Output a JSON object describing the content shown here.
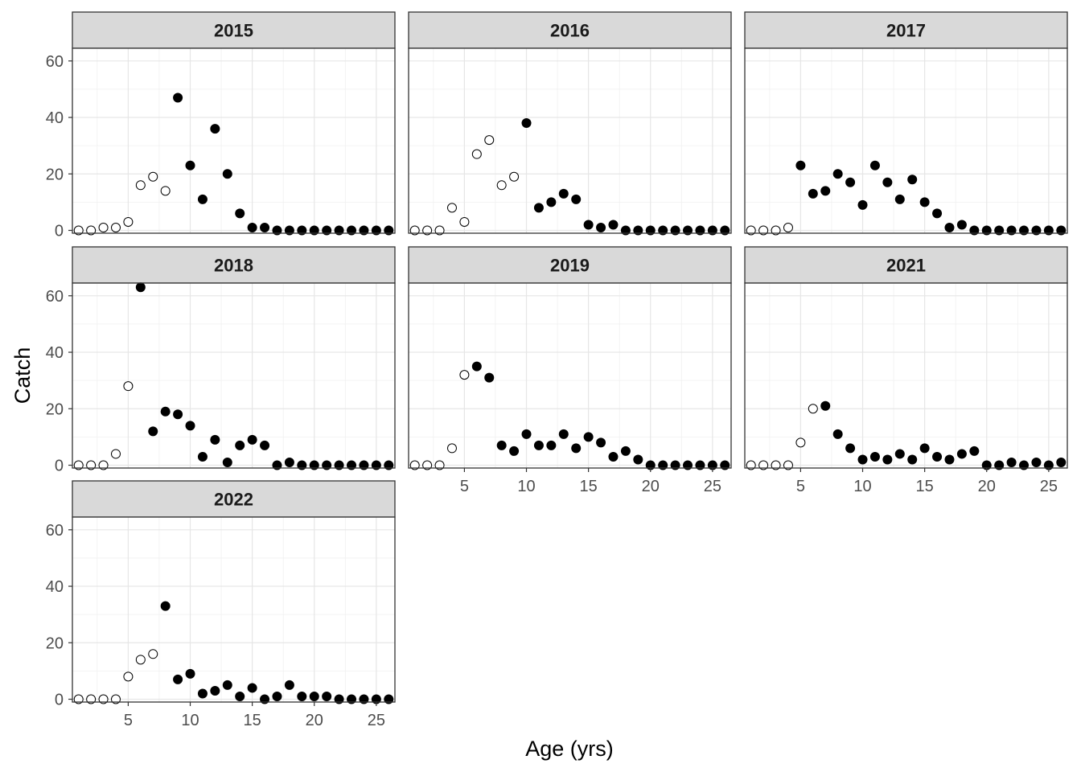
{
  "chart_data": {
    "type": "scatter",
    "xlabel": "Age (yrs)",
    "ylabel": "Catch",
    "xlim": [
      0.5,
      26.5
    ],
    "ylim": [
      -1,
      64.5
    ],
    "x_ticks": [
      5,
      10,
      15,
      20,
      25
    ],
    "y_ticks": [
      0,
      20,
      40,
      60
    ],
    "grid": true,
    "ages": [
      1,
      2,
      3,
      4,
      5,
      6,
      7,
      8,
      9,
      10,
      11,
      12,
      13,
      14,
      15,
      16,
      17,
      18,
      19,
      20,
      21,
      22,
      23,
      24,
      25,
      26
    ],
    "marker_fill": {
      "open": "#ffffff",
      "filled": "#000000"
    },
    "panels": [
      {
        "year": "2015",
        "catch": [
          0,
          0,
          1,
          1,
          3,
          16,
          19,
          14,
          47,
          23,
          11,
          36,
          20,
          6,
          1,
          1,
          0,
          0,
          0,
          0,
          0,
          0,
          0,
          0,
          0,
          0
        ],
        "filled": [
          0,
          0,
          0,
          0,
          0,
          0,
          0,
          0,
          1,
          1,
          1,
          1,
          1,
          1,
          1,
          1,
          1,
          1,
          1,
          1,
          1,
          1,
          1,
          1,
          1,
          1
        ]
      },
      {
        "year": "2016",
        "catch": [
          0,
          0,
          0,
          8,
          3,
          27,
          32,
          16,
          19,
          38,
          8,
          10,
          13,
          11,
          2,
          1,
          2,
          0,
          0,
          0,
          0,
          0,
          0,
          0,
          0,
          0
        ],
        "filled": [
          0,
          0,
          0,
          0,
          0,
          0,
          0,
          0,
          0,
          1,
          1,
          1,
          1,
          1,
          1,
          1,
          1,
          1,
          1,
          1,
          1,
          1,
          1,
          1,
          1,
          1
        ]
      },
      {
        "year": "2017",
        "catch": [
          0,
          0,
          0,
          1,
          23,
          13,
          14,
          20,
          17,
          9,
          23,
          17,
          11,
          18,
          10,
          6,
          1,
          2,
          0,
          0,
          0,
          0,
          0,
          0,
          0,
          0
        ],
        "filled": [
          0,
          0,
          0,
          0,
          1,
          1,
          1,
          1,
          1,
          1,
          1,
          1,
          1,
          1,
          1,
          1,
          1,
          1,
          1,
          1,
          1,
          1,
          1,
          1,
          1,
          1
        ]
      },
      {
        "year": "2018",
        "catch": [
          0,
          0,
          0,
          4,
          28,
          63,
          12,
          19,
          18,
          14,
          3,
          9,
          1,
          7,
          9,
          7,
          0,
          1,
          0,
          0,
          0,
          0,
          0,
          0,
          0,
          0
        ],
        "filled": [
          0,
          0,
          0,
          0,
          0,
          1,
          1,
          1,
          1,
          1,
          1,
          1,
          1,
          1,
          1,
          1,
          1,
          1,
          1,
          1,
          1,
          1,
          1,
          1,
          1,
          1
        ]
      },
      {
        "year": "2019",
        "catch": [
          0,
          0,
          0,
          6,
          32,
          35,
          31,
          7,
          5,
          11,
          7,
          7,
          11,
          6,
          10,
          8,
          3,
          5,
          2,
          0,
          0,
          0,
          0,
          0,
          0,
          0
        ],
        "filled": [
          0,
          0,
          0,
          0,
          0,
          1,
          1,
          1,
          1,
          1,
          1,
          1,
          1,
          1,
          1,
          1,
          1,
          1,
          1,
          1,
          1,
          1,
          1,
          1,
          1,
          1
        ]
      },
      {
        "year": "2021",
        "catch": [
          0,
          0,
          0,
          0,
          8,
          20,
          21,
          11,
          6,
          2,
          3,
          2,
          4,
          2,
          6,
          3,
          2,
          4,
          5,
          0,
          0,
          1,
          0,
          1,
          0,
          1
        ],
        "filled": [
          0,
          0,
          0,
          0,
          0,
          0,
          1,
          1,
          1,
          1,
          1,
          1,
          1,
          1,
          1,
          1,
          1,
          1,
          1,
          1,
          1,
          1,
          1,
          1,
          1,
          1
        ]
      },
      {
        "year": "2022",
        "catch": [
          0,
          0,
          0,
          0,
          8,
          14,
          16,
          33,
          7,
          9,
          2,
          3,
          5,
          1,
          4,
          0,
          1,
          5,
          1,
          1,
          1,
          0,
          0,
          0,
          0,
          0
        ],
        "filled": [
          0,
          0,
          0,
          0,
          0,
          0,
          0,
          1,
          1,
          1,
          1,
          1,
          1,
          1,
          1,
          1,
          1,
          1,
          1,
          1,
          1,
          1,
          1,
          1,
          1,
          1
        ]
      }
    ]
  }
}
